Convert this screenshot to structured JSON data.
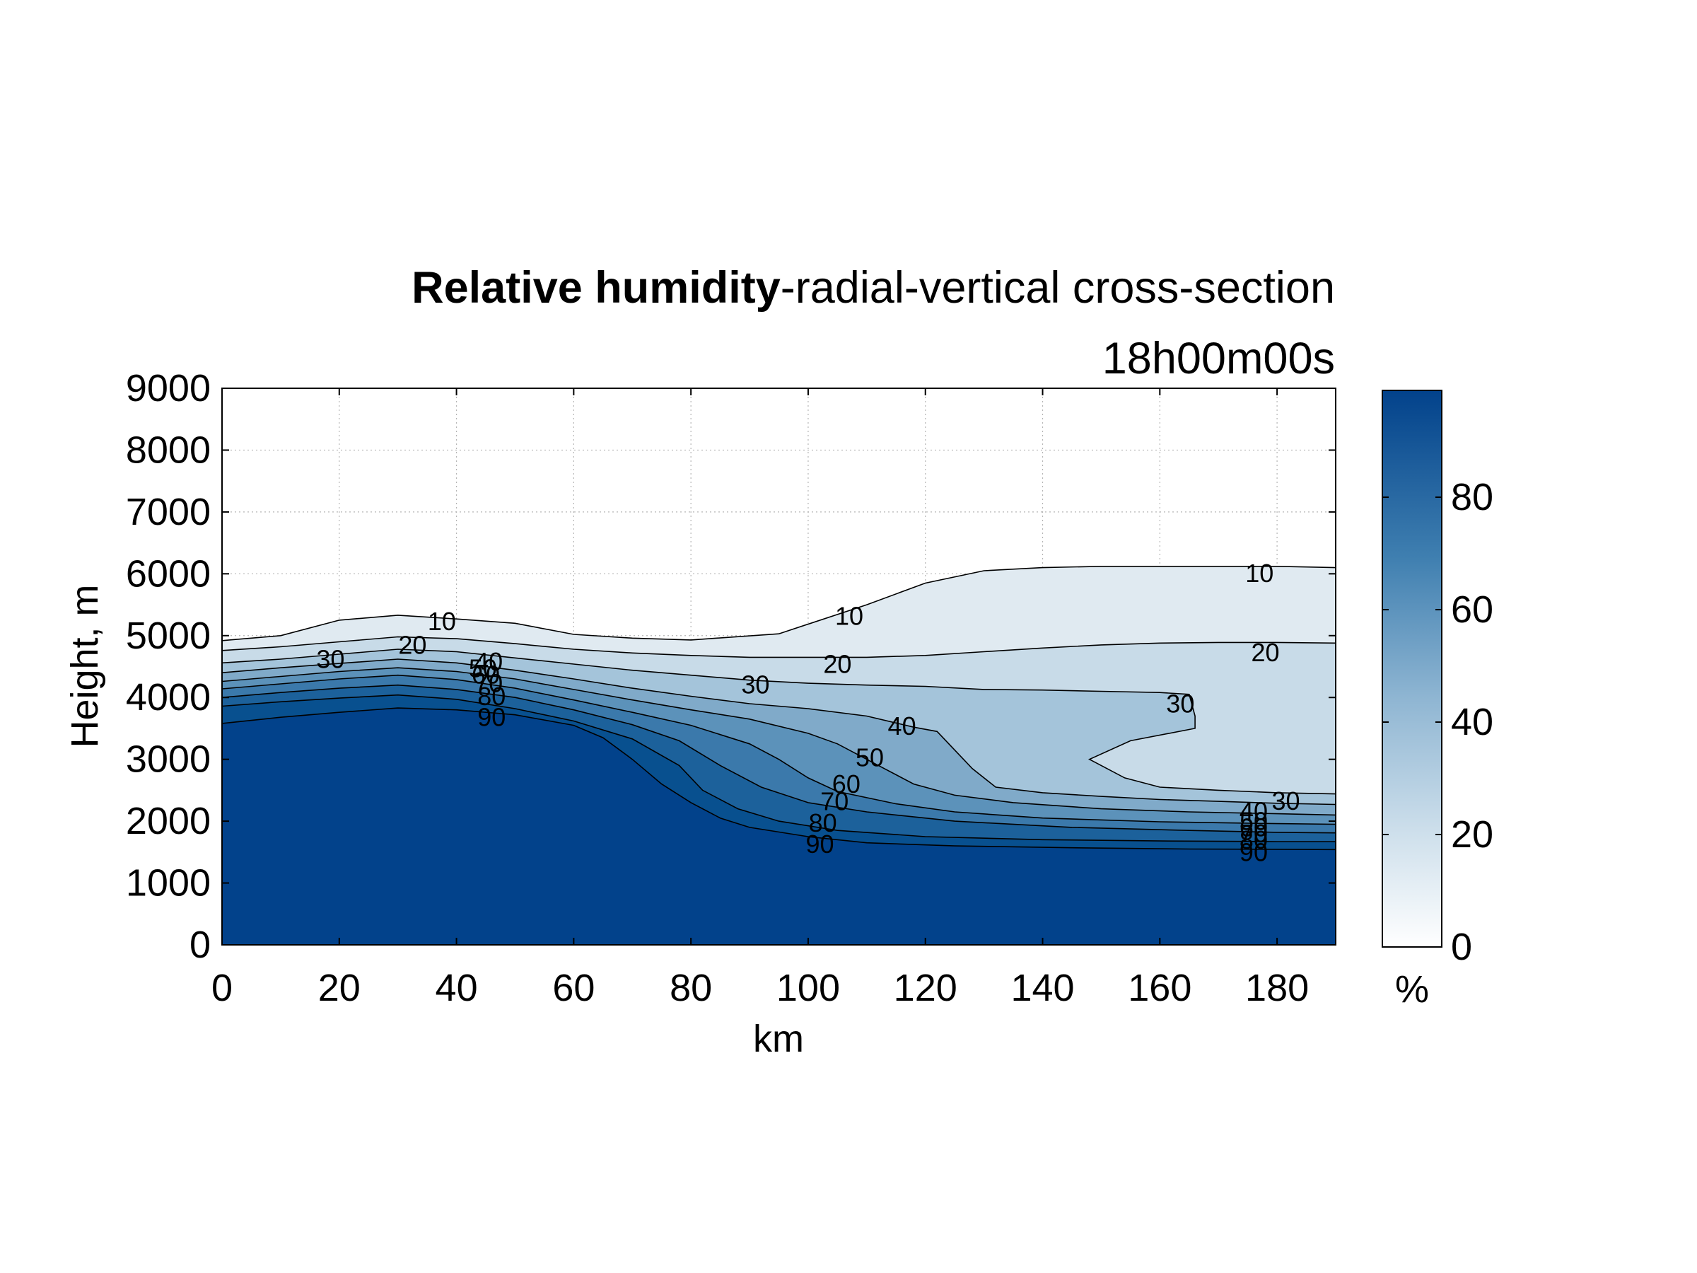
{
  "chart_data": {
    "type": "contour",
    "title_bold": "Relative humidity",
    "title_rest": "-radial-vertical cross-section",
    "subtitle": "18h00m00s",
    "xlabel": "km",
    "ylabel": "Height, m",
    "xlim": [
      0,
      190
    ],
    "ylim": [
      0,
      9000
    ],
    "x_ticks": [
      0,
      20,
      40,
      60,
      80,
      100,
      120,
      140,
      160,
      180
    ],
    "y_ticks": [
      0,
      1000,
      2000,
      3000,
      4000,
      5000,
      6000,
      7000,
      8000,
      9000
    ],
    "grid": true,
    "colorbar": {
      "label": "%",
      "range": [
        0,
        99
      ],
      "ticks": [
        0,
        20,
        40,
        60,
        80
      ],
      "colors": [
        "#ffffff",
        "#02428b"
      ]
    },
    "levels": [
      {
        "level": 10,
        "fill": "#e0eaf1",
        "points": [
          [
            0,
            4920
          ],
          [
            10,
            5000
          ],
          [
            20,
            5250
          ],
          [
            30,
            5330
          ],
          [
            40,
            5270
          ],
          [
            50,
            5200
          ],
          [
            60,
            5020
          ],
          [
            70,
            4960
          ],
          [
            80,
            4930
          ],
          [
            95,
            5030
          ],
          [
            110,
            5500
          ],
          [
            120,
            5850
          ],
          [
            130,
            6050
          ],
          [
            140,
            6100
          ],
          [
            150,
            6120
          ],
          [
            160,
            6120
          ],
          [
            170,
            6120
          ],
          [
            180,
            6120
          ],
          [
            190,
            6100
          ]
        ]
      },
      {
        "level": 20,
        "fill": "#c8dbe8",
        "points": [
          [
            0,
            4760
          ],
          [
            10,
            4820
          ],
          [
            20,
            4900
          ],
          [
            30,
            4980
          ],
          [
            40,
            4950
          ],
          [
            50,
            4870
          ],
          [
            60,
            4780
          ],
          [
            70,
            4720
          ],
          [
            80,
            4680
          ],
          [
            90,
            4650
          ],
          [
            100,
            4650
          ],
          [
            110,
            4650
          ],
          [
            120,
            4680
          ],
          [
            130,
            4740
          ],
          [
            140,
            4800
          ],
          [
            150,
            4850
          ],
          [
            160,
            4880
          ],
          [
            170,
            4890
          ],
          [
            180,
            4890
          ],
          [
            190,
            4880
          ]
        ]
      },
      {
        "level": 30,
        "fill": "#a4c4da",
        "points": [
          [
            0,
            4560
          ],
          [
            10,
            4620
          ],
          [
            20,
            4700
          ],
          [
            30,
            4780
          ],
          [
            40,
            4740
          ],
          [
            50,
            4640
          ],
          [
            60,
            4540
          ],
          [
            70,
            4440
          ],
          [
            80,
            4360
          ],
          [
            90,
            4280
          ],
          [
            100,
            4230
          ],
          [
            110,
            4200
          ],
          [
            120,
            4180
          ],
          [
            130,
            4130
          ],
          [
            140,
            4120
          ],
          [
            150,
            4100
          ],
          [
            160,
            4080
          ],
          [
            165,
            4050
          ],
          [
            166,
            3700
          ],
          [
            166,
            3500
          ],
          [
            155,
            3300
          ],
          [
            148,
            3000
          ],
          [
            154,
            2700
          ],
          [
            160,
            2550
          ],
          [
            170,
            2500
          ],
          [
            180,
            2460
          ],
          [
            190,
            2440
          ]
        ]
      },
      {
        "level": 40,
        "fill": "#80aac9",
        "points": [
          [
            0,
            4400
          ],
          [
            10,
            4480
          ],
          [
            20,
            4550
          ],
          [
            30,
            4620
          ],
          [
            40,
            4560
          ],
          [
            50,
            4440
          ],
          [
            60,
            4300
          ],
          [
            70,
            4150
          ],
          [
            80,
            4020
          ],
          [
            90,
            3900
          ],
          [
            100,
            3820
          ],
          [
            110,
            3700
          ],
          [
            118,
            3520
          ],
          [
            122,
            3450
          ],
          [
            128,
            2850
          ],
          [
            132,
            2550
          ],
          [
            140,
            2460
          ],
          [
            150,
            2400
          ],
          [
            160,
            2350
          ],
          [
            170,
            2320
          ],
          [
            180,
            2290
          ],
          [
            190,
            2270
          ]
        ]
      },
      {
        "level": 50,
        "fill": "#5c92ba",
        "points": [
          [
            0,
            4260
          ],
          [
            10,
            4340
          ],
          [
            20,
            4420
          ],
          [
            30,
            4480
          ],
          [
            40,
            4420
          ],
          [
            50,
            4300
          ],
          [
            60,
            4130
          ],
          [
            70,
            3960
          ],
          [
            80,
            3800
          ],
          [
            90,
            3650
          ],
          [
            100,
            3420
          ],
          [
            105,
            3250
          ],
          [
            112,
            2900
          ],
          [
            118,
            2600
          ],
          [
            125,
            2420
          ],
          [
            135,
            2300
          ],
          [
            150,
            2200
          ],
          [
            165,
            2150
          ],
          [
            180,
            2120
          ],
          [
            190,
            2100
          ]
        ]
      },
      {
        "level": 60,
        "fill": "#3b79ab",
        "points": [
          [
            0,
            4140
          ],
          [
            10,
            4220
          ],
          [
            20,
            4300
          ],
          [
            30,
            4360
          ],
          [
            40,
            4290
          ],
          [
            50,
            4150
          ],
          [
            60,
            3960
          ],
          [
            70,
            3760
          ],
          [
            80,
            3550
          ],
          [
            90,
            3250
          ],
          [
            95,
            3000
          ],
          [
            100,
            2700
          ],
          [
            105,
            2480
          ],
          [
            115,
            2280
          ],
          [
            125,
            2150
          ],
          [
            140,
            2050
          ],
          [
            160,
            1990
          ],
          [
            180,
            1960
          ],
          [
            190,
            1950
          ]
        ]
      },
      {
        "level": 70,
        "fill": "#1c619b",
        "points": [
          [
            0,
            4000
          ],
          [
            10,
            4080
          ],
          [
            20,
            4150
          ],
          [
            30,
            4200
          ],
          [
            40,
            4130
          ],
          [
            50,
            4000
          ],
          [
            60,
            3800
          ],
          [
            70,
            3560
          ],
          [
            78,
            3300
          ],
          [
            85,
            2900
          ],
          [
            92,
            2550
          ],
          [
            100,
            2300
          ],
          [
            110,
            2150
          ],
          [
            125,
            2000
          ],
          [
            145,
            1900
          ],
          [
            165,
            1850
          ],
          [
            180,
            1820
          ],
          [
            190,
            1810
          ]
        ]
      },
      {
        "level": 80,
        "fill": "#08508f",
        "points": [
          [
            0,
            3860
          ],
          [
            10,
            3930
          ],
          [
            20,
            3990
          ],
          [
            30,
            4040
          ],
          [
            40,
            3970
          ],
          [
            50,
            3820
          ],
          [
            60,
            3620
          ],
          [
            70,
            3330
          ],
          [
            78,
            2900
          ],
          [
            82,
            2500
          ],
          [
            88,
            2200
          ],
          [
            95,
            2000
          ],
          [
            105,
            1850
          ],
          [
            120,
            1750
          ],
          [
            140,
            1700
          ],
          [
            160,
            1680
          ],
          [
            180,
            1670
          ],
          [
            190,
            1670
          ]
        ]
      },
      {
        "level": 90,
        "fill": "#02428b",
        "points": [
          [
            0,
            3580
          ],
          [
            10,
            3680
          ],
          [
            20,
            3760
          ],
          [
            30,
            3830
          ],
          [
            40,
            3800
          ],
          [
            50,
            3720
          ],
          [
            60,
            3550
          ],
          [
            65,
            3350
          ],
          [
            70,
            3000
          ],
          [
            75,
            2600
          ],
          [
            80,
            2300
          ],
          [
            85,
            2050
          ],
          [
            90,
            1900
          ],
          [
            100,
            1750
          ],
          [
            110,
            1650
          ],
          [
            125,
            1600
          ],
          [
            145,
            1570
          ],
          [
            165,
            1550
          ],
          [
            180,
            1545
          ],
          [
            190,
            1540
          ]
        ]
      }
    ],
    "contour_labels": [
      {
        "text": "10",
        "x": 37.5,
        "y": 5230
      },
      {
        "text": "10",
        "x": 107,
        "y": 5320
      },
      {
        "text": "10",
        "x": 177,
        "y": 6010
      },
      {
        "text": "20",
        "x": 32.5,
        "y": 4850
      },
      {
        "text": "20",
        "x": 105,
        "y": 4540
      },
      {
        "text": "20",
        "x": 178,
        "y": 4730
      },
      {
        "text": "30",
        "x": 18.5,
        "y": 4620
      },
      {
        "text": "30",
        "x": 91,
        "y": 4210
      },
      {
        "text": "30",
        "x": 163.5,
        "y": 3900
      },
      {
        "text": "30",
        "x": 181.5,
        "y": 2330
      },
      {
        "text": "40",
        "x": 45.5,
        "y": 4580
      },
      {
        "text": "40",
        "x": 116,
        "y": 3540
      },
      {
        "text": "40",
        "x": 176,
        "y": 2160
      },
      {
        "text": "50",
        "x": 44.5,
        "y": 4470
      },
      {
        "text": "50",
        "x": 110.5,
        "y": 3030
      },
      {
        "text": "50",
        "x": 176,
        "y": 2000
      },
      {
        "text": "60",
        "x": 45,
        "y": 4370
      },
      {
        "text": "60",
        "x": 106.5,
        "y": 2600
      },
      {
        "text": "60",
        "x": 176,
        "y": 1900
      },
      {
        "text": "70",
        "x": 45.5,
        "y": 4230
      },
      {
        "text": "70",
        "x": 104.5,
        "y": 2320
      },
      {
        "text": "70",
        "x": 176,
        "y": 1800
      },
      {
        "text": "80",
        "x": 46,
        "y": 4020
      },
      {
        "text": "80",
        "x": 102.5,
        "y": 1970
      },
      {
        "text": "80",
        "x": 176,
        "y": 1700
      },
      {
        "text": "90",
        "x": 46,
        "y": 3680
      },
      {
        "text": "90",
        "x": 102,
        "y": 1630
      },
      {
        "text": "90",
        "x": 176,
        "y": 1500
      }
    ]
  }
}
